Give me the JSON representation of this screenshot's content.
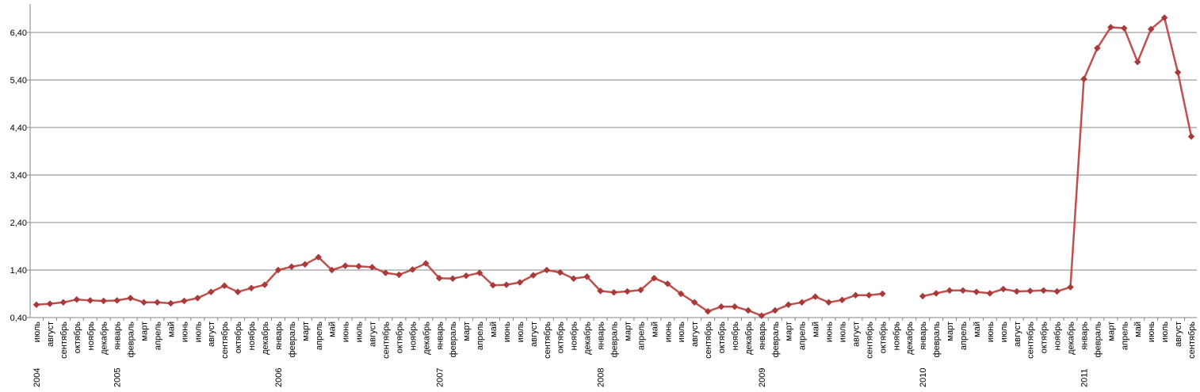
{
  "chart_data": {
    "type": "line",
    "title": "",
    "xlabel": "",
    "ylabel": "",
    "ylim": [
      0.4,
      7.0
    ],
    "yticks": [
      "0,40",
      "1,40",
      "2,40",
      "3,40",
      "4,40",
      "5,40",
      "6,40"
    ],
    "ytick_values": [
      0.4,
      1.4,
      2.4,
      3.4,
      4.4,
      5.4,
      6.4
    ],
    "grid": true,
    "legend": "none",
    "line_color": "#C0504D",
    "marker_color": "#A93A3A",
    "categories": [
      {
        "year": "2004",
        "month": "июль"
      },
      {
        "year": "",
        "month": "август"
      },
      {
        "year": "",
        "month": "сентябрь"
      },
      {
        "year": "",
        "month": "октябрь"
      },
      {
        "year": "",
        "month": "ноябрь"
      },
      {
        "year": "",
        "month": "декабрь"
      },
      {
        "year": "2005",
        "month": "январь"
      },
      {
        "year": "",
        "month": "февраль"
      },
      {
        "year": "",
        "month": "март"
      },
      {
        "year": "",
        "month": "апрель"
      },
      {
        "year": "",
        "month": "май"
      },
      {
        "year": "",
        "month": "июнь"
      },
      {
        "year": "",
        "month": "июль"
      },
      {
        "year": "",
        "month": "август"
      },
      {
        "year": "",
        "month": "сентябрь"
      },
      {
        "year": "",
        "month": "октябрь"
      },
      {
        "year": "",
        "month": "ноябрь"
      },
      {
        "year": "",
        "month": "декабрь"
      },
      {
        "year": "2006",
        "month": "январь"
      },
      {
        "year": "",
        "month": "февраль"
      },
      {
        "year": "",
        "month": "март"
      },
      {
        "year": "",
        "month": "апрель"
      },
      {
        "year": "",
        "month": "май"
      },
      {
        "year": "",
        "month": "июнь"
      },
      {
        "year": "",
        "month": "июль"
      },
      {
        "year": "",
        "month": "август"
      },
      {
        "year": "",
        "month": "сентябрь"
      },
      {
        "year": "",
        "month": "октябрь"
      },
      {
        "year": "",
        "month": "ноябрь"
      },
      {
        "year": "",
        "month": "декабрь"
      },
      {
        "year": "2007",
        "month": "январь"
      },
      {
        "year": "",
        "month": "февраль"
      },
      {
        "year": "",
        "month": "март"
      },
      {
        "year": "",
        "month": "апрель"
      },
      {
        "year": "",
        "month": "май"
      },
      {
        "year": "",
        "month": "июнь"
      },
      {
        "year": "",
        "month": "июль"
      },
      {
        "year": "",
        "month": "август"
      },
      {
        "year": "",
        "month": "сентябрь"
      },
      {
        "year": "",
        "month": "октябрь"
      },
      {
        "year": "",
        "month": "ноябрь"
      },
      {
        "year": "",
        "month": "декабрь"
      },
      {
        "year": "2008",
        "month": "январь"
      },
      {
        "year": "",
        "month": "февраль"
      },
      {
        "year": "",
        "month": "март"
      },
      {
        "year": "",
        "month": "апрель"
      },
      {
        "year": "",
        "month": "май"
      },
      {
        "year": "",
        "month": "июнь"
      },
      {
        "year": "",
        "month": "июль"
      },
      {
        "year": "",
        "month": "август"
      },
      {
        "year": "",
        "month": "сентябрь"
      },
      {
        "year": "",
        "month": "октябрь"
      },
      {
        "year": "",
        "month": "ноябрь"
      },
      {
        "year": "",
        "month": "декабрь"
      },
      {
        "year": "2009",
        "month": "январь"
      },
      {
        "year": "",
        "month": "февраль"
      },
      {
        "year": "",
        "month": "март"
      },
      {
        "year": "",
        "month": "апрель"
      },
      {
        "year": "",
        "month": "май"
      },
      {
        "year": "",
        "month": "июнь"
      },
      {
        "year": "",
        "month": "июль"
      },
      {
        "year": "",
        "month": "август"
      },
      {
        "year": "",
        "month": "сентябрь"
      },
      {
        "year": "",
        "month": "октябрь"
      },
      {
        "year": "",
        "month": "ноябрь"
      },
      {
        "year": "",
        "month": "декабрь"
      },
      {
        "year": "2010",
        "month": "январь"
      },
      {
        "year": "",
        "month": "февраль"
      },
      {
        "year": "",
        "month": "март"
      },
      {
        "year": "",
        "month": "апрель"
      },
      {
        "year": "",
        "month": "май"
      },
      {
        "year": "",
        "month": "июнь"
      },
      {
        "year": "",
        "month": "июль"
      },
      {
        "year": "",
        "month": "август"
      },
      {
        "year": "",
        "month": "сентябрь"
      },
      {
        "year": "",
        "month": "октябрь"
      },
      {
        "year": "",
        "month": "ноябрь"
      },
      {
        "year": "",
        "month": "декабрь"
      },
      {
        "year": "2011",
        "month": "январь"
      },
      {
        "year": "",
        "month": "февраль"
      },
      {
        "year": "",
        "month": "март"
      },
      {
        "year": "",
        "month": "апрель"
      },
      {
        "year": "",
        "month": "май"
      },
      {
        "year": "",
        "month": "июнь"
      },
      {
        "year": "",
        "month": "июль"
      },
      {
        "year": "",
        "month": "август"
      },
      {
        "year": "",
        "month": "сентябрь"
      }
    ],
    "series": [
      {
        "values": [
          0.67,
          0.69,
          0.72,
          0.78,
          0.76,
          0.75,
          0.76,
          0.81,
          0.72,
          0.72,
          0.7,
          0.75,
          0.81,
          0.94,
          1.07,
          0.94,
          1.02,
          1.09,
          1.4,
          1.47,
          1.52,
          1.67,
          1.4,
          1.49,
          1.48,
          1.46,
          1.34,
          1.3,
          1.41,
          1.54,
          1.23,
          1.22,
          1.28,
          1.34,
          1.08,
          1.09,
          1.14,
          1.29,
          1.4,
          1.35,
          1.22,
          1.26,
          0.96,
          0.93,
          0.95,
          0.98,
          1.23,
          1.11,
          0.9,
          0.72,
          0.53,
          0.63,
          0.63,
          0.55,
          0.44,
          0.55,
          0.67,
          0.72,
          0.84,
          0.72,
          0.77,
          0.87,
          0.87,
          0.9,
          null,
          null,
          0.85,
          0.91,
          0.97,
          0.97,
          0.94,
          0.91,
          1.0,
          0.95,
          0.96,
          0.97,
          0.95,
          1.04,
          5.42,
          6.07,
          6.51,
          6.49,
          5.78,
          6.47,
          6.71,
          5.56,
          4.21
        ]
      }
    ]
  }
}
